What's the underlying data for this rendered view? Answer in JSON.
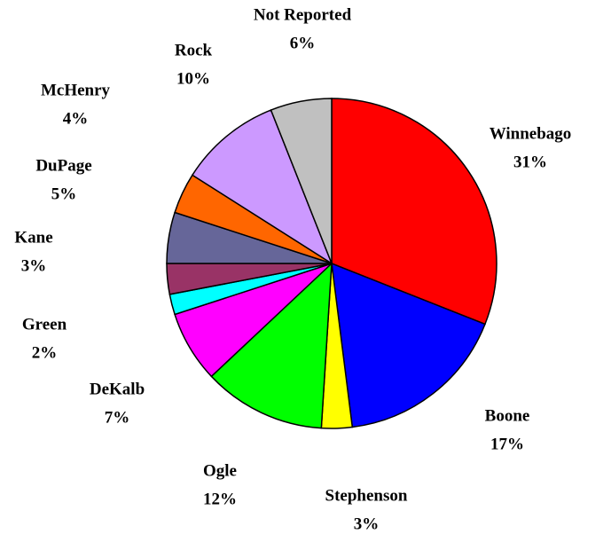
{
  "chart_data": {
    "type": "pie",
    "categories": [
      "Winnebago",
      "Boone",
      "Stephenson",
      "Ogle",
      "DeKalb",
      "Green",
      "Kane",
      "DuPage",
      "McHenry",
      "Rock",
      "Not Reported"
    ],
    "values": [
      31,
      17,
      3,
      12,
      7,
      2,
      3,
      5,
      4,
      10,
      6
    ],
    "value_labels": [
      "31%",
      "17%",
      "3%",
      "12%",
      "7%",
      "2%",
      "3%",
      "5%",
      "4%",
      "10%",
      "6%"
    ],
    "colors": [
      "#ff0000",
      "#0000ff",
      "#ffff00",
      "#00ff00",
      "#ff00ff",
      "#00ffff",
      "#993366",
      "#666699",
      "#ff6600",
      "#cc99ff",
      "#c0c0c0"
    ]
  }
}
